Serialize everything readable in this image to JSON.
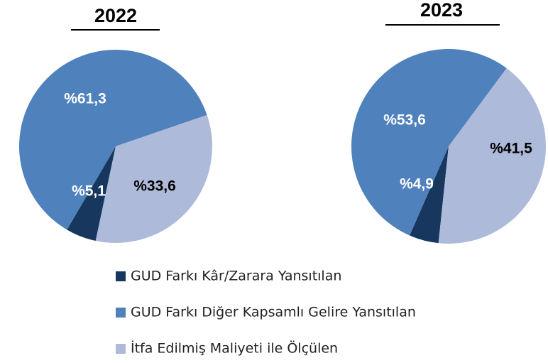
{
  "legend": {
    "labels": [
      "GUD Farkı Kâr/Zarara Yansıtılan",
      "GUD Farkı Diğer Kapsamlı Gelire Yansıtılan",
      "İtfa Edilmiş Maliyeti ile Ölçülen"
    ],
    "colors": [
      "#17375e",
      "#4f81bd",
      "#aebad9"
    ]
  },
  "chart_data": [
    {
      "type": "pie",
      "title": "2022",
      "values": [
        5.1,
        61.3,
        33.6
      ],
      "value_labels": [
        "%5,1",
        "%61,3",
        "%33,6"
      ]
    },
    {
      "type": "pie",
      "title": "2023",
      "values": [
        4.9,
        53.6,
        41.5
      ],
      "value_labels": [
        "%4,9",
        "%53,6",
        "%41,5"
      ]
    }
  ]
}
